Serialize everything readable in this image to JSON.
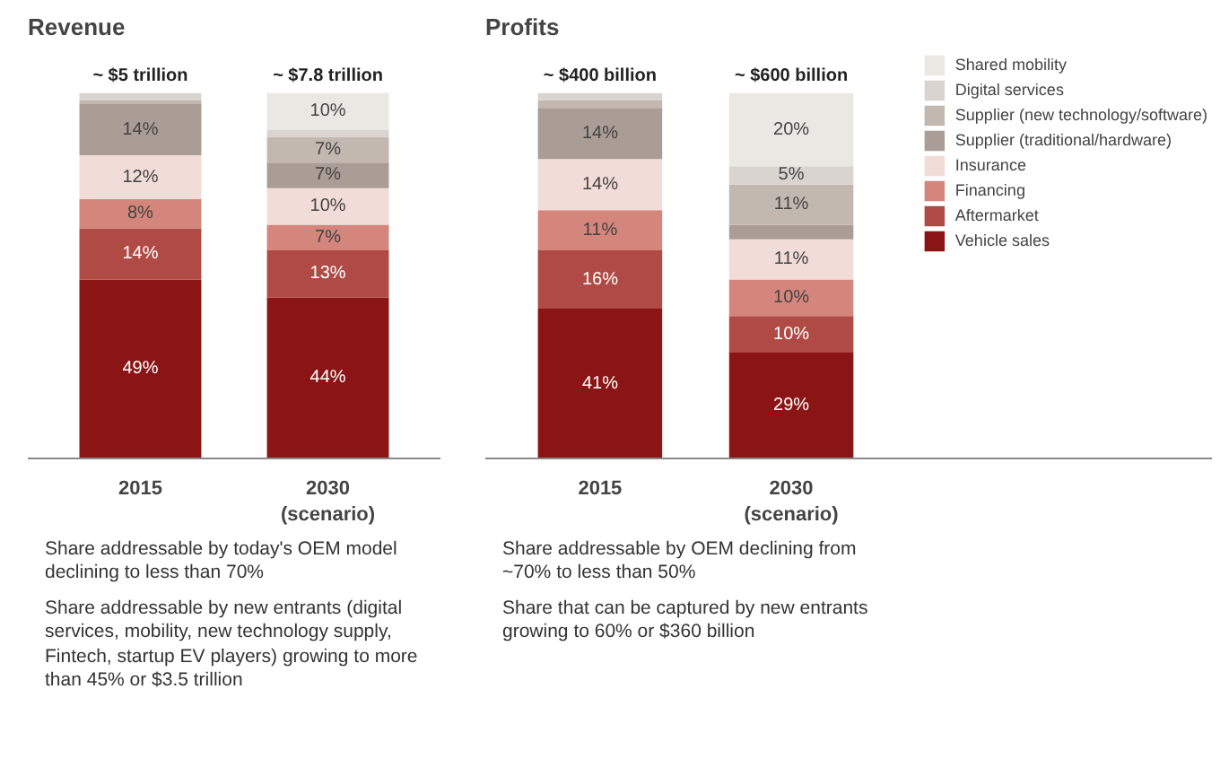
{
  "chart_data": [
    {
      "type": "bar",
      "title": "Revenue",
      "stacked": true,
      "categories": [
        "2015",
        "2030\n(scenario)"
      ],
      "legend": false,
      "series": [
        {
          "color": "#8b1414",
          "values": [
            49,
            44
          ],
          "value_labels": [
            "49%",
            "44%"
          ]
        },
        {
          "color": "#b04a45",
          "values": [
            14,
            13
          ],
          "value_labels": [
            "14%",
            "13%"
          ]
        },
        {
          "color": "#d4857c",
          "values": [
            8,
            7
          ],
          "value_labels": [
            "8%",
            "7%"
          ]
        },
        {
          "color": "#f2dcd8",
          "values": [
            12,
            10
          ],
          "value_labels": [
            "12%",
            "10%"
          ]
        },
        {
          "color": "#a99d95",
          "values": [
            14,
            7
          ],
          "value_labels": [
            "14%",
            "7%"
          ]
        },
        {
          "color": "#c2b8b0",
          "values": [
            1,
            7
          ],
          "value_labels": [
            null,
            "7%"
          ]
        },
        {
          "color": "#d9d4d0",
          "values": [
            2,
            2
          ],
          "value_labels": [
            null,
            null
          ]
        },
        {
          "color": "#e9e8e3",
          "values": [
            null,
            10
          ],
          "value_labels": [
            null,
            "10%"
          ]
        }
      ],
      "annotations": [
        {
          "text": "~ $5 trillion",
          "x": "2015",
          "y": 100
        },
        {
          "text": "~ $7.8 trillion",
          "x": "2030\n(scenario)",
          "y": 100
        },
        "Share addressable by today's OEM model declining to less than 70%",
        "Share addressable by new entrants (digital services, mobility, new technology supply, Fintech, startup EV players) growing to more than 45% or $3.5 trillion"
      ]
    },
    {
      "type": "bar",
      "title": "Profits",
      "stacked": true,
      "categories": [
        "2015",
        "2030\n(scenario)"
      ],
      "legend": "right",
      "series": [
        {
          "name": "Vehicle sales",
          "color": "#8b1414",
          "values": [
            41,
            29
          ],
          "value_labels": [
            "41%",
            "29%"
          ]
        },
        {
          "name": "Aftermarket",
          "color": "#b04a45",
          "values": [
            16,
            10
          ],
          "value_labels": [
            "16%",
            "10%"
          ]
        },
        {
          "name": "Financing",
          "color": "#d4857c",
          "values": [
            11,
            10
          ],
          "value_labels": [
            "11%",
            "10%"
          ]
        },
        {
          "name": "Insurance",
          "color": "#f2dcd8",
          "values": [
            14,
            11
          ],
          "value_labels": [
            "14%",
            "11%"
          ]
        },
        {
          "name": "Supplier (traditional/hardware)",
          "color": "#a99d95",
          "values": [
            14,
            4
          ],
          "value_labels": [
            "14%",
            null
          ]
        },
        {
          "name": "Supplier (new technology/software)",
          "color": "#c2b8b0",
          "values": [
            2,
            11
          ],
          "value_labels": [
            null,
            "11%"
          ]
        },
        {
          "name": "Digital services",
          "color": "#d9d4d0",
          "values": [
            2,
            5
          ],
          "value_labels": [
            null,
            "5%"
          ]
        },
        {
          "name": "Shared mobility",
          "color": "#e9e8e3",
          "values": [
            null,
            20
          ],
          "value_labels": [
            null,
            "20%"
          ]
        }
      ],
      "annotations": [
        {
          "text": "~ $400 billion",
          "x": "2015",
          "y": 100
        },
        {
          "text": "~ $600 billion",
          "x": "2030\n(scenario)",
          "y": 100
        },
        "Share addressable by OEM declining from ~70% to less than 50%",
        "Share that can be captured by new entrants growing to 60% or $360 billion"
      ]
    }
  ]
}
